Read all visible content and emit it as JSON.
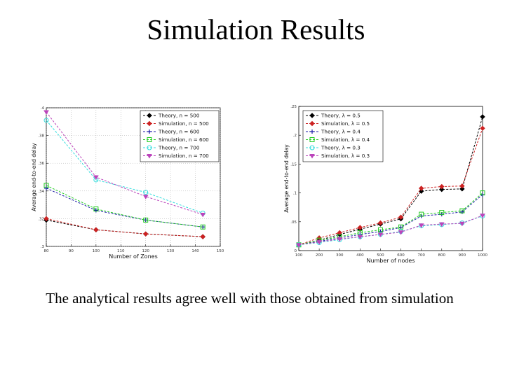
{
  "slide": {
    "title": "Simulation Results",
    "caption": "The analytical results agree well with those obtained from simulation"
  },
  "chart_data": [
    {
      "type": "line",
      "xlabel": "Number of Zones",
      "ylabel": "Average end-to-end delay",
      "xlim": [
        80,
        150
      ],
      "ylim": [
        0.3,
        0.4
      ],
      "xticks": [
        80,
        90,
        100,
        110,
        120,
        130,
        140,
        150
      ],
      "yticks": [
        0.3,
        0.32,
        0.34,
        0.36,
        0.38,
        0.4
      ],
      "grid": true,
      "legend": "top-right",
      "x": [
        80,
        100,
        120,
        143
      ],
      "series": [
        {
          "name": "Theory, n = 500",
          "color": "#000000",
          "marker": "diamond",
          "values": [
            0.319,
            0.312,
            0.309,
            0.307
          ]
        },
        {
          "name": "Simulation, n = 500",
          "color": "#cc2222",
          "marker": "diamond",
          "values": [
            0.32,
            0.312,
            0.309,
            0.307
          ]
        },
        {
          "name": "Theory, n = 600",
          "color": "#1a1aa8",
          "marker": "plus",
          "values": [
            0.342,
            0.326,
            0.319,
            0.314
          ]
        },
        {
          "name": "Simulation, n = 600",
          "color": "#22cc22",
          "marker": "square",
          "values": [
            0.344,
            0.327,
            0.319,
            0.314
          ]
        },
        {
          "name": "Theory, n = 700",
          "color": "#33dddd",
          "marker": "circle",
          "values": [
            0.391,
            0.348,
            0.339,
            0.324
          ]
        },
        {
          "name": "Simulation, n = 700",
          "color": "#bb44bb",
          "marker": "triangle",
          "values": [
            0.397,
            0.35,
            0.336,
            0.323
          ]
        }
      ]
    },
    {
      "type": "line",
      "xlabel": "Number of nodes",
      "ylabel": "Average end-to-end delay",
      "xlim": [
        100,
        1000
      ],
      "ylim": [
        0,
        0.25
      ],
      "xticks": [
        100,
        200,
        300,
        400,
        500,
        600,
        700,
        800,
        900,
        1000
      ],
      "yticks": [
        0,
        0.05,
        0.1,
        0.15,
        0.2,
        0.25
      ],
      "grid": false,
      "legend": "top-left",
      "x": [
        100,
        200,
        300,
        400,
        500,
        600,
        700,
        800,
        900,
        1000
      ],
      "series": [
        {
          "name": "Theory, λ = 0.5",
          "color": "#000000",
          "marker": "diamond",
          "values": [
            0.01,
            0.018,
            0.028,
            0.037,
            0.046,
            0.055,
            0.103,
            0.106,
            0.107,
            0.232
          ]
        },
        {
          "name": "Simulation, λ = 0.5",
          "color": "#cc2222",
          "marker": "diamond",
          "values": [
            0.01,
            0.022,
            0.031,
            0.04,
            0.048,
            0.058,
            0.108,
            0.111,
            0.112,
            0.212
          ]
        },
        {
          "name": "Theory, λ = 0.4",
          "color": "#1a1aa8",
          "marker": "plus",
          "values": [
            0.01,
            0.016,
            0.022,
            0.028,
            0.033,
            0.04,
            0.06,
            0.063,
            0.067,
            0.097
          ]
        },
        {
          "name": "Simulation, λ = 0.4",
          "color": "#22cc22",
          "marker": "square",
          "values": [
            0.01,
            0.018,
            0.024,
            0.031,
            0.036,
            0.041,
            0.063,
            0.066,
            0.069,
            0.1
          ]
        },
        {
          "name": "Theory, λ = 0.3",
          "color": "#33dddd",
          "marker": "circle",
          "values": [
            0.01,
            0.014,
            0.019,
            0.024,
            0.028,
            0.033,
            0.043,
            0.045,
            0.048,
            0.06
          ]
        },
        {
          "name": "Simulation, λ = 0.3",
          "color": "#bb44bb",
          "marker": "triangle",
          "values": [
            0.01,
            0.015,
            0.02,
            0.024,
            0.028,
            0.032,
            0.044,
            0.046,
            0.047,
            0.061
          ]
        }
      ]
    }
  ]
}
